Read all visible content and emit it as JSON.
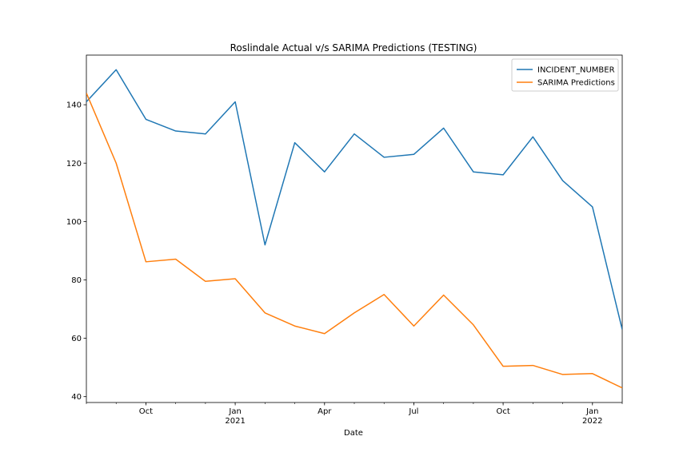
{
  "chart_data": {
    "type": "line",
    "title": "Roslindale Actual v/s SARIMA Predictions (TESTING)",
    "xlabel": "Date",
    "ylabel": "",
    "x": [
      "2020-08",
      "2020-09",
      "2020-10",
      "2020-11",
      "2020-12",
      "2021-01",
      "2021-02",
      "2021-03",
      "2021-04",
      "2021-05",
      "2021-06",
      "2021-07",
      "2021-08",
      "2021-09",
      "2021-10",
      "2021-11",
      "2021-12",
      "2022-01",
      "2022-02"
    ],
    "xlim": [
      "2020-08",
      "2022-02"
    ],
    "ylim": [
      38,
      157
    ],
    "yticks": [
      40,
      60,
      80,
      100,
      120,
      140
    ],
    "xticks": [
      {
        "x": "2020-10",
        "label": "Oct",
        "sublabel": ""
      },
      {
        "x": "2021-01",
        "label": "Jan",
        "sublabel": "2021"
      },
      {
        "x": "2021-04",
        "label": "Apr",
        "sublabel": ""
      },
      {
        "x": "2021-07",
        "label": "Jul",
        "sublabel": ""
      },
      {
        "x": "2021-10",
        "label": "Oct",
        "sublabel": ""
      },
      {
        "x": "2022-01",
        "label": "Jan",
        "sublabel": "2022"
      }
    ],
    "series": [
      {
        "name": "INCIDENT_NUMBER",
        "color": "#1f77b4",
        "values": [
          141,
          152,
          135,
          131,
          130,
          141,
          92,
          127,
          117,
          130,
          122,
          123,
          132,
          117,
          116,
          129,
          114,
          105,
          63
        ]
      },
      {
        "name": "SARIMA Predictions",
        "color": "#ff7f0e",
        "values": [
          144,
          120,
          86.2,
          87.1,
          79.5,
          80.4,
          68.7,
          64.2,
          61.6,
          68.7,
          75,
          64.2,
          74.8,
          64.6,
          50.4,
          50.7,
          47.6,
          47.9,
          43
        ]
      }
    ],
    "grid": false,
    "legend_position": "top-right"
  }
}
